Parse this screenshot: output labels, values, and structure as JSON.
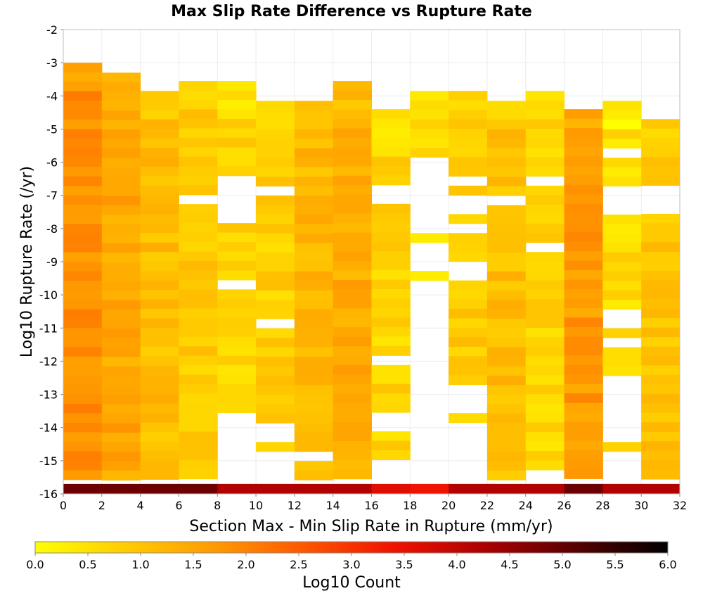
{
  "chart_data": {
    "type": "heatmap",
    "title": "Max Slip Rate Difference vs Rupture Rate",
    "xlabel": "Section Max - Min Slip Rate in Rupture (mm/yr)",
    "ylabel": "Log10 Rupture Rate (/yr)",
    "xlim": [
      0,
      32
    ],
    "ylim": [
      -16,
      -2
    ],
    "x_ticks": [
      "0",
      "2",
      "4",
      "6",
      "8",
      "10",
      "12",
      "14",
      "16",
      "18",
      "20",
      "22",
      "24",
      "26",
      "28",
      "30",
      "32"
    ],
    "y_ticks": [
      "-2",
      "-3",
      "-4",
      "-5",
      "-6",
      "-7",
      "-8",
      "-9",
      "-10",
      "-11",
      "-12",
      "-13",
      "-14",
      "-15",
      "-16"
    ],
    "x_bin_width": 2,
    "y_bin_height": 0.2857,
    "grid": true,
    "colorbar": {
      "label": "Log10 Count",
      "min": 0.0,
      "max": 6.0,
      "ticks": [
        "0.0",
        "0.5",
        "1.0",
        "1.5",
        "2.0",
        "2.5",
        "3.0",
        "3.5",
        "4.0",
        "4.5",
        "5.0",
        "5.5",
        "6.0"
      ],
      "colors": [
        "#ffff00",
        "#ffcc00",
        "#ff9900",
        "#ff5500",
        "#ee1100",
        "#aa0000",
        "#550000",
        "#000000"
      ]
    },
    "columns": [
      {
        "x_start": 0,
        "y_top": -3.0,
        "base": 1.8,
        "gaps": []
      },
      {
        "x_start": 2,
        "y_top": -3.3,
        "base": 1.5,
        "gaps": []
      },
      {
        "x_start": 4,
        "y_top": -3.85,
        "base": 1.1,
        "gaps": []
      },
      {
        "x_start": 6,
        "y_top": -3.55,
        "base": 0.9,
        "gaps": [
          [
            -7.15,
            -6.85
          ]
        ]
      },
      {
        "x_start": 8,
        "y_top": -3.55,
        "base": 0.7,
        "gaps": [
          [
            -7.9,
            -6.5
          ],
          [
            -9.85,
            -9.6
          ],
          [
            -15.9,
            -13.6
          ]
        ]
      },
      {
        "x_start": 10,
        "y_top": -4.15,
        "base": 0.8,
        "gaps": [
          [
            -7.1,
            -6.85
          ],
          [
            -11.0,
            -10.8
          ],
          [
            -15.9,
            -14.7
          ],
          [
            -14.45,
            -13.9
          ]
        ]
      },
      {
        "x_start": 12,
        "y_top": -4.15,
        "base": 1.2,
        "gaps": [
          [
            -14.9,
            -14.6
          ]
        ]
      },
      {
        "x_start": 14,
        "y_top": -3.55,
        "base": 1.4,
        "gaps": []
      },
      {
        "x_start": 16,
        "y_top": -4.4,
        "base": 0.7,
        "gaps": [
          [
            -7.35,
            -6.7
          ],
          [
            -12.2,
            -11.9
          ],
          [
            -15.9,
            -14.9
          ],
          [
            -14.2,
            -13.6
          ]
        ]
      },
      {
        "x_start": 18,
        "y_top": -3.85,
        "base": 0.6,
        "gaps": [
          [
            -8.2,
            -5.75
          ],
          [
            -9.25,
            -8.45
          ],
          [
            -15.9,
            -9.6
          ]
        ]
      },
      {
        "x_start": 20,
        "y_top": -3.85,
        "base": 0.9,
        "gaps": [
          [
            -6.7,
            -6.45
          ],
          [
            -7.6,
            -7.05
          ],
          [
            -9.55,
            -9.0
          ],
          [
            -13.5,
            -12.6
          ],
          [
            -15.9,
            -13.85
          ],
          [
            -8.2,
            -7.9
          ]
        ]
      },
      {
        "x_start": 22,
        "y_top": -4.15,
        "base": 1.1,
        "gaps": [
          [
            -7.25,
            -7.05
          ]
        ]
      },
      {
        "x_start": 24,
        "y_top": -3.85,
        "base": 0.7,
        "gaps": [
          [
            -6.7,
            -6.45
          ],
          [
            -8.7,
            -8.45
          ],
          [
            -15.9,
            -15.2
          ]
        ]
      },
      {
        "x_start": 26,
        "y_top": -4.4,
        "base": 1.7,
        "gaps": []
      },
      {
        "x_start": 28,
        "y_top": -4.15,
        "base": 0.6,
        "gaps": [
          [
            -5.95,
            -5.65
          ],
          [
            -7.6,
            -6.7
          ],
          [
            -11.05,
            -10.45
          ],
          [
            -11.65,
            -11.3
          ],
          [
            -12.9,
            -12.45
          ],
          [
            -14.5,
            -13.0
          ],
          [
            -15.9,
            -14.8
          ]
        ]
      },
      {
        "x_start": 30,
        "y_top": -4.7,
        "base": 1.0,
        "gaps": [
          [
            -7.6,
            -6.7
          ],
          [
            -15.9,
            -15.6
          ]
        ]
      }
    ],
    "bottom_row": [
      4.9,
      4.9,
      4.9,
      4.9,
      4.2,
      4.2,
      4.2,
      4.2,
      3.6,
      3.4,
      4.2,
      4.2,
      4.2,
      4.9,
      4.2,
      4.2
    ]
  }
}
